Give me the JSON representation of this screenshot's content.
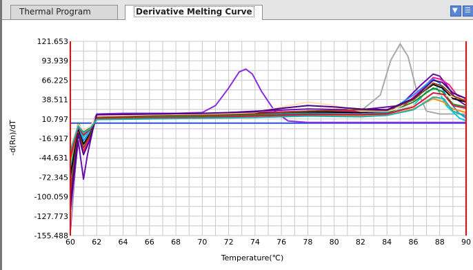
{
  "tabs": [
    {
      "label": "Thermal Program",
      "active": false
    },
    {
      "label": "Derivative Melting Curve",
      "active": true
    }
  ],
  "toolbar": {
    "icons": [
      "down-arrow-icon",
      "menu-icon"
    ]
  },
  "colors": {
    "grid": "#c8c8c8",
    "threshold": "#2d4fd6",
    "axis_marker": "#ff0000",
    "tab_bar": "#e5e5e5"
  },
  "chart_data": {
    "type": "line",
    "xlabel": "Temperature(℃)",
    "ylabel": "-d(Rn)/dT",
    "xlim": [
      60,
      90
    ],
    "ylim": [
      -155.488,
      121.653
    ],
    "x_ticks": [
      "60",
      "62",
      "64",
      "66",
      "68",
      "70",
      "72",
      "74",
      "76",
      "78",
      "80",
      "82",
      "84",
      "86",
      "88",
      "90"
    ],
    "y_ticks": [
      "121.653",
      "93.939",
      "66.225",
      "38.511",
      "10.797",
      "-16.917",
      "-44.631",
      "-72.345",
      "-100.059",
      "-127.773",
      "-155.488"
    ],
    "threshold": 5,
    "series": [
      {
        "color": "#8a2be2",
        "x": [
          60,
          60.6,
          61,
          61.4,
          62,
          64,
          66,
          68,
          70,
          71,
          72,
          72.8,
          73.3,
          73.8,
          74.5,
          75.5,
          76.5,
          78,
          80,
          84,
          86,
          88,
          90
        ],
        "y": [
          -150,
          -5,
          -12,
          -8,
          18,
          19,
          19,
          19,
          20,
          30,
          55,
          78,
          82,
          75,
          50,
          22,
          8,
          6,
          6,
          6,
          6,
          6,
          6
        ]
      },
      {
        "color": "#a9a9a9",
        "x": [
          60,
          60.6,
          61,
          61.5,
          62,
          66,
          70,
          74,
          78,
          82,
          83.5,
          84.3,
          85,
          85.6,
          86.2,
          87,
          88,
          90
        ],
        "y": [
          -140,
          -10,
          -20,
          -6,
          14,
          15,
          16,
          18,
          20,
          22,
          45,
          95,
          118,
          100,
          55,
          22,
          18,
          18
        ]
      },
      {
        "color": "#6a0dad",
        "x": [
          60,
          60.6,
          61,
          61.3,
          61.7,
          62,
          66,
          70,
          74,
          78,
          82,
          85,
          86.5,
          87.5,
          88,
          88.5,
          89.2,
          90
        ],
        "y": [
          -120,
          -20,
          -75,
          -40,
          -5,
          16,
          17,
          18,
          22,
          25,
          24,
          30,
          58,
          75,
          72,
          60,
          40,
          30
        ]
      },
      {
        "color": "#ff1493",
        "x": [
          60,
          60.6,
          61,
          61.5,
          62,
          66,
          70,
          74,
          78,
          82,
          85,
          86.5,
          87.5,
          88,
          88.7,
          89.3,
          90
        ],
        "y": [
          -100,
          -10,
          -35,
          -15,
          15,
          17,
          18,
          20,
          22,
          22,
          25,
          50,
          70,
          68,
          60,
          45,
          38
        ]
      },
      {
        "color": "#1e90ff",
        "x": [
          60,
          60.6,
          61,
          61.5,
          62,
          66,
          70,
          74,
          78,
          82,
          84,
          86,
          87.5,
          88,
          88.6,
          89.4,
          90
        ],
        "y": [
          -80,
          0,
          -20,
          -8,
          12,
          14,
          15,
          17,
          19,
          18,
          20,
          45,
          68,
          62,
          40,
          20,
          12
        ]
      },
      {
        "color": "#00ced1",
        "x": [
          60,
          60.6,
          61,
          61.5,
          62,
          66,
          70,
          74,
          78,
          82,
          84,
          86,
          87,
          87.8,
          88.5,
          89.5,
          90
        ],
        "y": [
          -60,
          2,
          -15,
          -5,
          13,
          14,
          14,
          15,
          16,
          14,
          18,
          30,
          50,
          55,
          30,
          12,
          8
        ]
      },
      {
        "color": "#ff8c00",
        "x": [
          60,
          60.6,
          61,
          61.5,
          62,
          66,
          70,
          74,
          78,
          82,
          84,
          86,
          87.5,
          88.3,
          89,
          90
        ],
        "y": [
          -50,
          0,
          -10,
          -4,
          10,
          12,
          13,
          14,
          15,
          15,
          16,
          25,
          40,
          35,
          25,
          20
        ]
      },
      {
        "color": "#000000",
        "x": [
          60,
          60.6,
          61,
          61.5,
          62,
          66,
          70,
          74,
          78,
          82,
          84,
          86,
          87.5,
          88.2,
          89,
          90
        ],
        "y": [
          -70,
          -5,
          -25,
          -10,
          14,
          16,
          17,
          19,
          21,
          20,
          22,
          40,
          60,
          55,
          40,
          35
        ]
      },
      {
        "color": "#228b22",
        "x": [
          60,
          60.6,
          61,
          61.5,
          62,
          66,
          70,
          74,
          78,
          82,
          84,
          86,
          87.5,
          88.2,
          89,
          90
        ],
        "y": [
          -40,
          5,
          -8,
          -2,
          12,
          13,
          14,
          16,
          18,
          17,
          19,
          35,
          55,
          50,
          32,
          28
        ]
      },
      {
        "color": "#ffdab9",
        "x": [
          60,
          60.6,
          61,
          61.5,
          62,
          66,
          70,
          74,
          76,
          78,
          80,
          82,
          84,
          86,
          88,
          90
        ],
        "y": [
          -30,
          3,
          -5,
          0,
          15,
          16,
          17,
          20,
          28,
          35,
          30,
          22,
          22,
          30,
          45,
          40
        ]
      },
      {
        "color": "#8b4513",
        "x": [
          60,
          60.6,
          61,
          61.5,
          62,
          66,
          70,
          74,
          78,
          82,
          84,
          86,
          87.5,
          88.2,
          89,
          90
        ],
        "y": [
          -90,
          -8,
          -30,
          -12,
          13,
          15,
          16,
          18,
          22,
          24,
          23,
          38,
          62,
          58,
          44,
          36
        ]
      },
      {
        "color": "#4b0082",
        "x": [
          60,
          60.6,
          61,
          61.5,
          62,
          66,
          70,
          74,
          76,
          78,
          80,
          82,
          84,
          86,
          87.5,
          88.2,
          89,
          90
        ],
        "y": [
          -110,
          -10,
          -40,
          -18,
          17,
          18,
          19,
          21,
          26,
          30,
          28,
          25,
          24,
          40,
          66,
          63,
          48,
          40
        ]
      },
      {
        "color": "#dc143c",
        "x": [
          60,
          60.6,
          61,
          61.5,
          62,
          66,
          70,
          74,
          78,
          82,
          84,
          86,
          87.5,
          88.3,
          89,
          90
        ],
        "y": [
          -45,
          0,
          -12,
          -4,
          11,
          12,
          13,
          15,
          17,
          17,
          18,
          28,
          48,
          46,
          30,
          26
        ]
      },
      {
        "color": "#20b2aa",
        "x": [
          60,
          60.6,
          61,
          61.5,
          62,
          66,
          70,
          74,
          78,
          82,
          84,
          86,
          87.5,
          88.3,
          89,
          90
        ],
        "y": [
          -35,
          1,
          -9,
          -3,
          10,
          11,
          12,
          13,
          15,
          14,
          16,
          24,
          42,
          40,
          22,
          15
        ]
      }
    ]
  }
}
